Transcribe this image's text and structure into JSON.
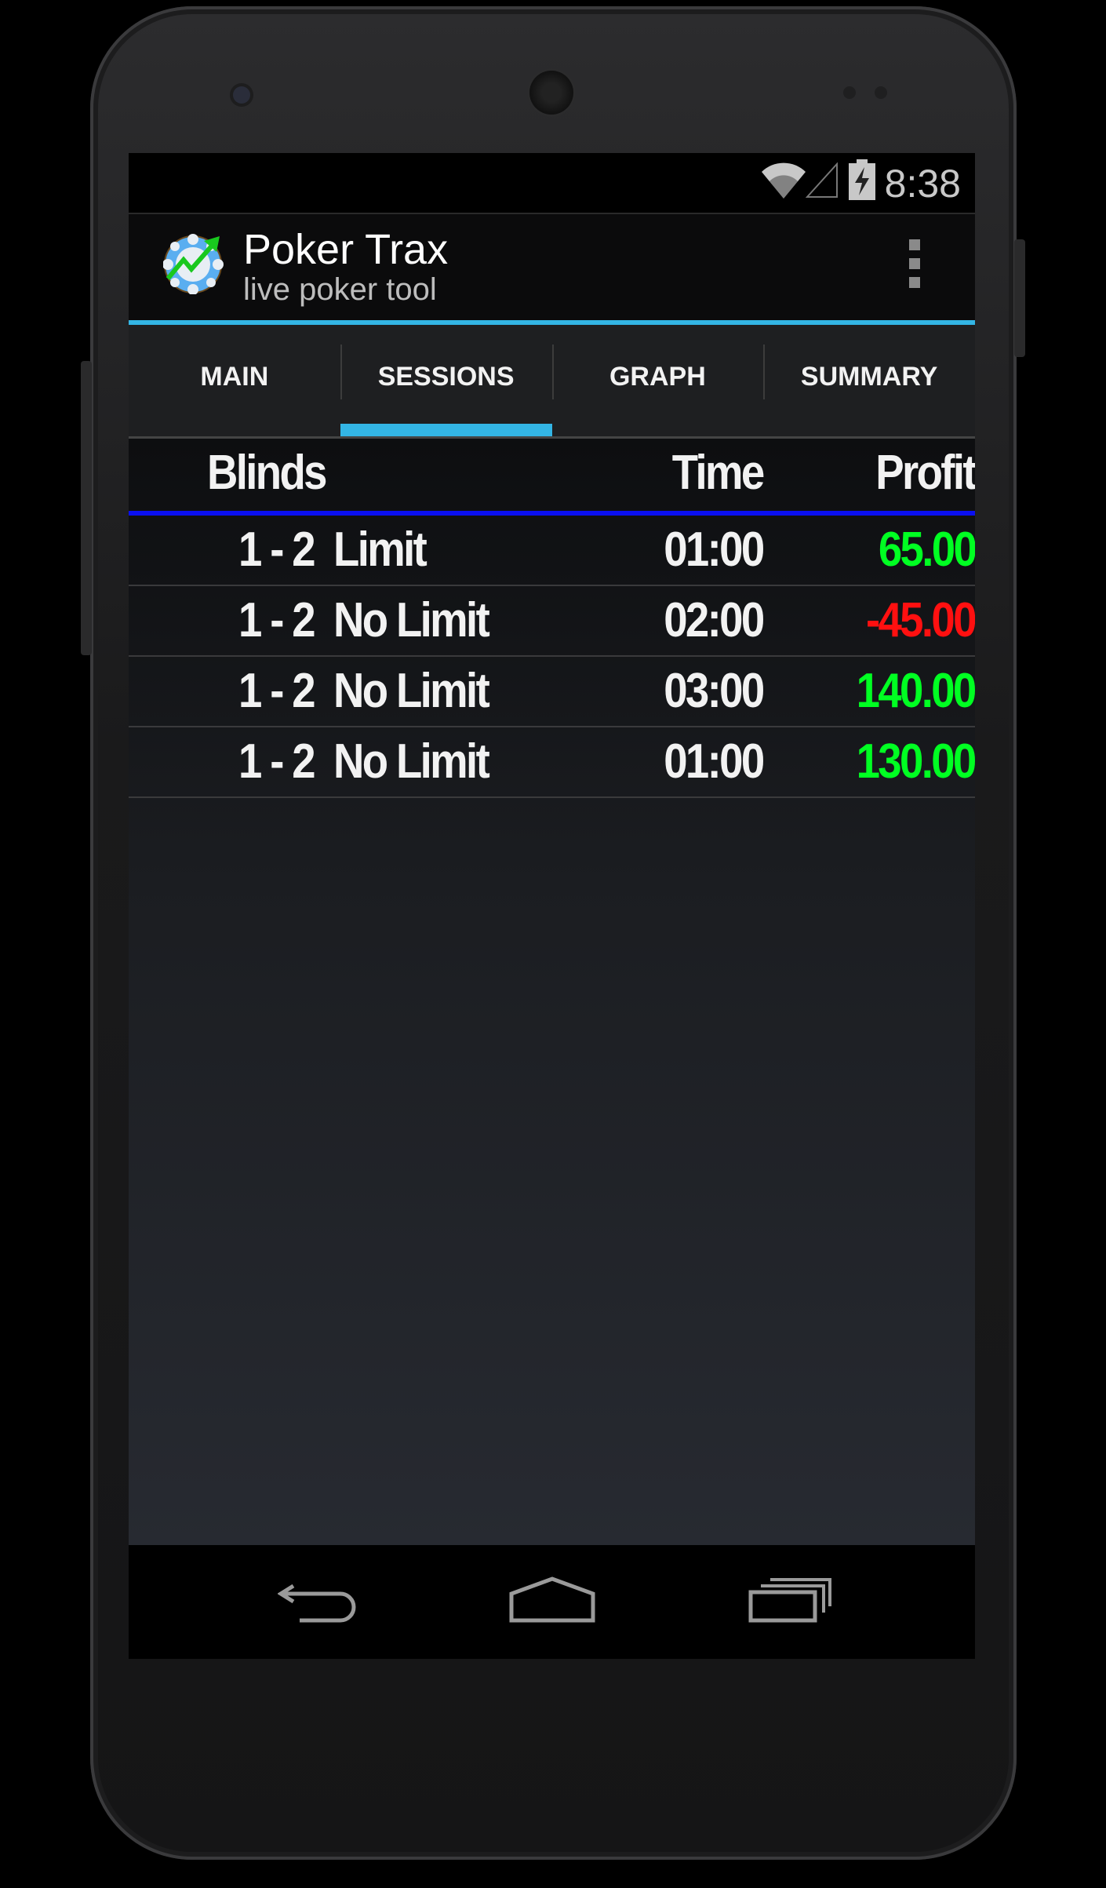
{
  "status_bar": {
    "time": "8:38",
    "icons": [
      "wifi-icon",
      "signal-icon",
      "battery-charging-icon"
    ]
  },
  "action_bar": {
    "title": "Poker Trax",
    "subtitle": "live poker tool",
    "menu_icon": "overflow-menu-icon"
  },
  "tabs": [
    {
      "label": "MAIN",
      "active": false
    },
    {
      "label": "SESSIONS",
      "active": true
    },
    {
      "label": "GRAPH",
      "active": false
    },
    {
      "label": "SUMMARY",
      "active": false
    }
  ],
  "table": {
    "headers": {
      "blinds": "Blinds",
      "time": "Time",
      "profit": "Profit"
    },
    "rows": [
      {
        "blinds": "1 - 2  Limit",
        "time": "01:00",
        "profit": "65.00",
        "profit_color": "#00ff22"
      },
      {
        "blinds": "1 - 2  No Limit",
        "time": "02:00",
        "profit": "-45.00",
        "profit_color": "#ff1010"
      },
      {
        "blinds": "1 - 2  No Limit",
        "time": "03:00",
        "profit": "140.00",
        "profit_color": "#00ff22"
      },
      {
        "blinds": "1 - 2  No Limit",
        "time": "01:00",
        "profit": "130.00",
        "profit_color": "#00ff22"
      }
    ]
  },
  "colors": {
    "accent": "#33b5e5",
    "header_rule": "#0a0ff0",
    "positive": "#00ff22",
    "negative": "#ff1010"
  },
  "nav_bar": {
    "icons": [
      "back-icon",
      "home-icon",
      "recent-apps-icon"
    ]
  }
}
